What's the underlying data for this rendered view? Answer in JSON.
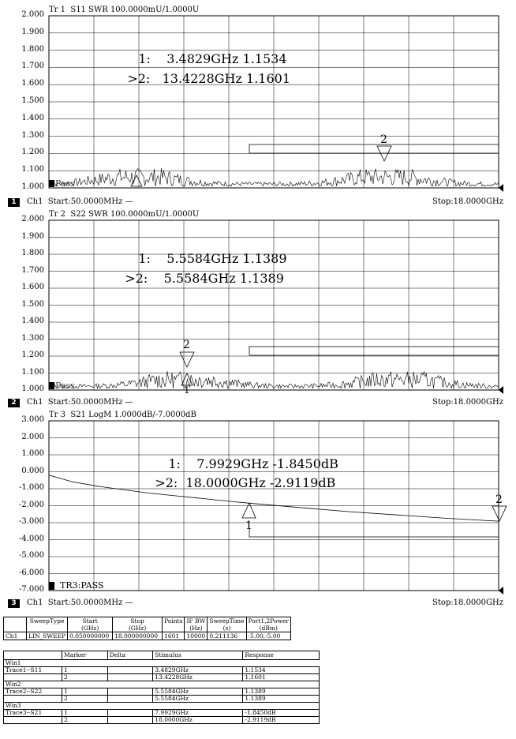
{
  "traces": [
    {
      "title": "Tr 1  S11 SWR 100.0000mU/1.0000U",
      "yticks": [
        "2.000",
        "1.900",
        "1.800",
        "1.700",
        "1.600",
        "1.500",
        "1.400",
        "1.300",
        "1.200",
        "1.100",
        "1.000"
      ],
      "markers": [
        {
          "prefix": "1:",
          "stimulus": "3.4829GHz",
          "response": "1.1534"
        },
        {
          "prefix": ">2:",
          "stimulus": "13.4228GHz",
          "response": "1.1601"
        }
      ],
      "marker_labels": [
        "1",
        "2"
      ],
      "status": "Pass",
      "channel": {
        "badge": "1",
        "text": "Ch1  Start:50.0000MHz —",
        "stop": "Stop:18.0000GHz"
      }
    },
    {
      "title": "Tr 2  S22 SWR 100.0000mU/1.0000U",
      "yticks": [
        "2.000",
        "1.900",
        "1.800",
        "1.700",
        "1.600",
        "1.500",
        "1.400",
        "1.300",
        "1.200",
        "1.100",
        "1.000"
      ],
      "markers": [
        {
          "prefix": "1:",
          "stimulus": "5.5584GHz",
          "response": "1.1389"
        },
        {
          "prefix": ">2:",
          "stimulus": "5.5584GHz",
          "response": "1.1389"
        }
      ],
      "marker_labels": [
        "2",
        "1"
      ],
      "status": "Pass",
      "channel": {
        "badge": "2",
        "text": "Ch1  Start:50.0000MHz —",
        "stop": "Stop:18.0000GHz"
      }
    },
    {
      "title": "Tr 3  S21 LogM 1.0000dB/-7.0000dB",
      "yticks": [
        "3.000",
        "2.000",
        "1.000",
        "0.000",
        "-1.000",
        "-2.000",
        "-3.000",
        "-4.000",
        "-5.000",
        "-6.000",
        "-7.000"
      ],
      "markers": [
        {
          "prefix": "1:",
          "stimulus": "7.9929GHz",
          "response": "-1.8450dB"
        },
        {
          "prefix": ">2:",
          "stimulus": "18.0000GHz",
          "response": "-2.9119dB"
        }
      ],
      "marker_labels": [
        "1",
        "2"
      ],
      "status": "TR3:PASS",
      "channel": {
        "badge": "3",
        "text": "Ch1  Start:50.0000MHz —",
        "stop": "Stop:18.0000GHz"
      }
    }
  ],
  "sweep_table": {
    "headers": [
      "",
      "SweepType",
      "Start\n(GHz)",
      "Stop\n(GHz)",
      "Points",
      "IF BW\n(Hz)",
      "SweepTime\n(s)",
      "Port1,2Power\n(dBm)"
    ],
    "row": [
      "Ch1",
      "LIN_SWEEP",
      "0.050000000",
      "18.000000000",
      "1601",
      "10000",
      "0.211136",
      "-5.00,-5.00"
    ]
  },
  "marker_table": {
    "headers": [
      "",
      "Marker",
      "Delta",
      "Stimulus",
      "Response"
    ],
    "groups": [
      {
        "win": "Win1",
        "trace": "Trace1--S11",
        "rows": [
          [
            "1",
            "",
            "3.4829GHz",
            "1.1534"
          ],
          [
            "2",
            "",
            "13.4228GHz",
            "1.1601"
          ]
        ]
      },
      {
        "win": "Win2",
        "trace": "Trace2--S22",
        "rows": [
          [
            "1",
            "",
            "5.5584GHz",
            "1.1389"
          ],
          [
            "2",
            "",
            "5.5584GHz",
            "1.1389"
          ]
        ]
      },
      {
        "win": "Win3",
        "trace": "Trace3--S21",
        "rows": [
          [
            "1",
            "",
            "7.9929GHz",
            "-1.8450dB"
          ],
          [
            "2",
            "",
            "18.0000GHz",
            "-2.9119dB"
          ]
        ]
      }
    ]
  },
  "chart_data": [
    {
      "type": "line",
      "title": "Tr 1  S11 SWR 100.0000mU/1.0000U",
      "xlim": [
        0.05,
        18.0
      ],
      "ylim": [
        1.0,
        2.0
      ],
      "x_units": "GHz",
      "grid": true,
      "series": [
        {
          "values_summary": "noisy SWR trace ~1.00–1.15 across band"
        }
      ],
      "markers": [
        {
          "x": 3.4829,
          "y": 1.1534
        },
        {
          "x": 13.4228,
          "y": 1.1601
        }
      ]
    },
    {
      "type": "line",
      "title": "Tr 2  S22 SWR 100.0000mU/1.0000U",
      "xlim": [
        0.05,
        18.0
      ],
      "ylim": [
        1.0,
        2.0
      ],
      "x_units": "GHz",
      "grid": true,
      "series": [
        {
          "values_summary": "noisy SWR trace ~1.00–1.14 across band"
        }
      ],
      "markers": [
        {
          "x": 5.5584,
          "y": 1.1389
        },
        {
          "x": 5.5584,
          "y": 1.1389
        }
      ]
    },
    {
      "type": "line",
      "title": "Tr 3  S21 LogM 1.0000dB/-7.0000dB",
      "xlim": [
        0.05,
        18.0
      ],
      "ylim": [
        -7.0,
        3.0
      ],
      "x_units": "GHz",
      "grid": true,
      "series": [
        {
          "x": [
            0.05,
            1,
            2,
            3,
            4,
            5,
            6,
            7,
            8,
            10,
            12,
            14,
            16,
            18
          ],
          "values": [
            -0.2,
            -0.6,
            -0.85,
            -1.05,
            -1.25,
            -1.4,
            -1.55,
            -1.7,
            -1.845,
            -2.1,
            -2.35,
            -2.55,
            -2.75,
            -2.912
          ]
        }
      ],
      "markers": [
        {
          "x": 7.9929,
          "y": -1.845
        },
        {
          "x": 18.0,
          "y": -2.9119
        }
      ]
    }
  ]
}
